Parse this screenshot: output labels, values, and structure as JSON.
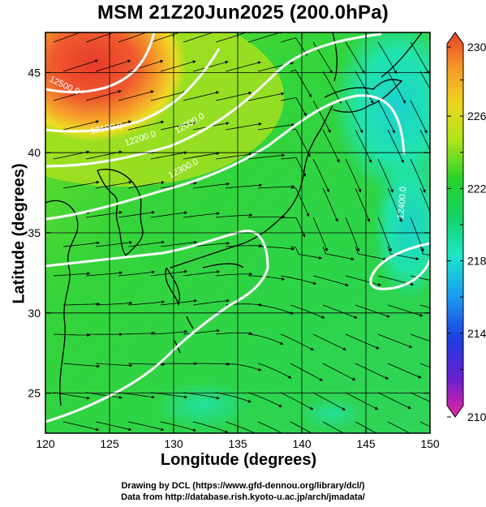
{
  "title": "MSM 21Z20Jun2025 (200.0hPa)",
  "credits": {
    "line1": "Drawing by DCL (https://www.gfd-dennou.org/library/dcl/)",
    "line2": "Data from http://database.rish.kyoto-u.ac.jp/arch/jmadata/"
  },
  "chart_data": {
    "type": "heatmap",
    "title": "MSM 21Z20Jun2025 (200.0hPa)",
    "xlabel": "Longitude (degrees)",
    "ylabel": "Latitude  (degrees)",
    "xlim": [
      120,
      150
    ],
    "ylim": [
      22.5,
      47.5
    ],
    "xticks": [
      120,
      125,
      130,
      135,
      140,
      145,
      150
    ],
    "yticks": [
      25,
      30,
      35,
      40,
      45
    ],
    "colorbar": {
      "min": 210,
      "max": 230,
      "tick_labels": [
        "230",
        "226",
        "222",
        "218",
        "214",
        "210"
      ],
      "colors": [
        "#e8259e",
        "#6a1fd0",
        "#1e3ce0",
        "#1aa0f0",
        "#1ee6c8",
        "#14d264",
        "#28d22a",
        "#aee61a",
        "#f0d21e",
        "#f59628",
        "#e6412d"
      ]
    },
    "contours": {
      "labels": [
        "12000.0",
        "12100.0",
        "12200.0",
        "12300.0",
        "12400.0",
        "12500.0"
      ]
    },
    "grid": true,
    "overlay": "streamlines"
  }
}
